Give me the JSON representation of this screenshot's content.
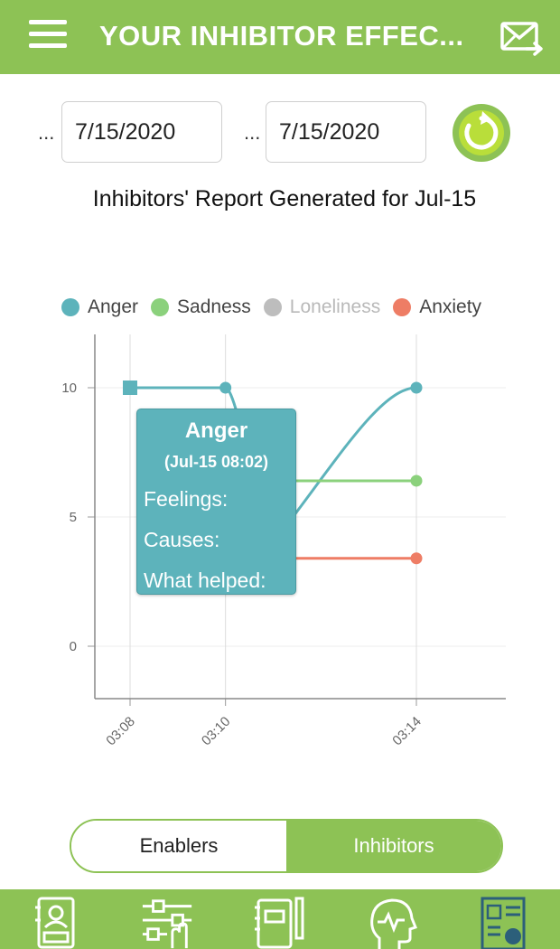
{
  "header": {
    "title": "YOUR INHIBITOR EFFEC...",
    "menu_icon": "hamburger-menu-icon",
    "mail_icon": "mail-forward-icon"
  },
  "date_range": {
    "start_prefix": "...",
    "start_value": "7/15/2020",
    "end_prefix": "...",
    "end_value": "7/15/2020",
    "refresh_icon": "refresh-icon"
  },
  "report_title": "Inhibitors' Report Generated for Jul-15",
  "colors": {
    "brand_green": "#8dc255",
    "anger": "#5db3bb",
    "sadness": "#8bd17c",
    "loneliness": "#bdbdbd",
    "anxiety": "#ee7d65"
  },
  "chart_data": {
    "type": "line",
    "title": "",
    "xlabel": "",
    "ylabel": "",
    "x_ticks": [
      "03:08",
      "03:10",
      "03:14"
    ],
    "y_ticks": [
      "0",
      "5",
      "10"
    ],
    "ylim": [
      -1,
      12
    ],
    "grid": true,
    "legend_position": "top",
    "series": [
      {
        "name": "Anger",
        "color": "#5db3bb",
        "points": [
          {
            "x": "03:08",
            "y": 10
          },
          {
            "x": "03:10",
            "y": 10
          },
          {
            "x": "03:11",
            "y": 4
          },
          {
            "x": "03:14",
            "y": 10
          }
        ]
      },
      {
        "name": "Sadness",
        "color": "#8bd17c",
        "points": [
          {
            "x": "03:10",
            "y": 6.4
          },
          {
            "x": "03:14",
            "y": 6.4
          }
        ]
      },
      {
        "name": "Loneliness",
        "color": "#bdbdbd",
        "hidden": true,
        "points": []
      },
      {
        "name": "Anxiety",
        "color": "#ee7d65",
        "points": [
          {
            "x": "03:10",
            "y": 3.4
          },
          {
            "x": "03:14",
            "y": 3.4
          }
        ]
      }
    ]
  },
  "tooltip": {
    "title": "Anger",
    "time": "(Jul-15 08:02)",
    "feelings": "Feelings:",
    "causes": "Causes:",
    "what_helped": "What helped:"
  },
  "toggle": {
    "enablers": "Enablers",
    "inhibitors": "Inhibitors",
    "selected": "Inhibitors"
  },
  "bottom_nav": [
    {
      "icon": "contacts-book-icon"
    },
    {
      "icon": "sliders-hand-icon"
    },
    {
      "icon": "journal-pen-icon"
    },
    {
      "icon": "head-mind-icon"
    },
    {
      "icon": "report-chart-icon",
      "active": true
    }
  ]
}
